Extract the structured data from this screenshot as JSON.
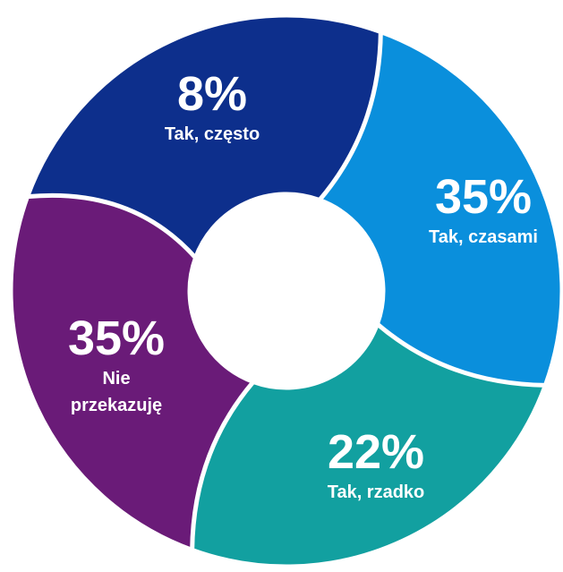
{
  "chart_data": {
    "type": "donut",
    "categories": [
      "Tak, często",
      "Tak, czasami",
      "Tak, rzadko",
      "Nie przekazuję"
    ],
    "values": [
      8,
      35,
      22,
      35
    ],
    "value_labels": [
      "8%",
      "35%",
      "22%",
      "35%"
    ],
    "colors": [
      "#0d2f8c",
      "#0a8fdc",
      "#12a0a0",
      "#6a1b78"
    ]
  }
}
